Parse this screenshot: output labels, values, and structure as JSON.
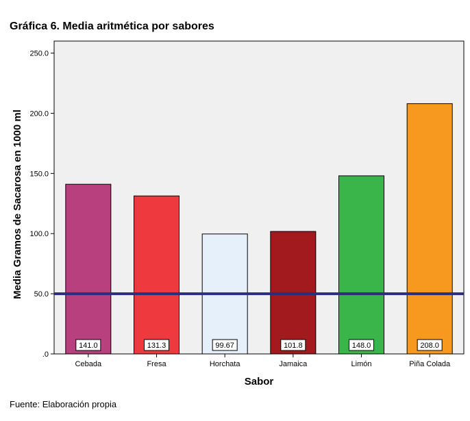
{
  "chart_title": "Gráfica 6. Media aritmética por sabores",
  "source_note": "Fuente: Elaboración propia",
  "chart_data": {
    "type": "bar",
    "xlabel": "Sabor",
    "ylabel": "Media Gramos de Sacarosa en 1000 ml",
    "ylim": [
      0,
      260
    ],
    "yticks": [
      ".0",
      "50.0",
      "100.0",
      "150.0",
      "200.0",
      "250.0"
    ],
    "ytick_values": [
      0,
      50,
      100,
      150,
      200,
      250
    ],
    "categories": [
      "Cebada",
      "Fresa",
      "Horchata",
      "Jamaica",
      "Limón",
      "Piña Colada"
    ],
    "values": [
      141.0,
      131.3,
      99.67,
      101.8,
      148.0,
      208.0
    ],
    "value_labels": [
      "141.0",
      "131.3",
      "99.67",
      "101.8",
      "148.0",
      "208.0"
    ],
    "bar_colors": [
      "#b8407e",
      "#ee3a3f",
      "#e5f0fb",
      "#a21a1e",
      "#3ab54a",
      "#f7991f"
    ],
    "reference_line": 50,
    "reference_line_color": "#2b2e7a",
    "plot_background": "#f0f0f0",
    "grid": false
  }
}
